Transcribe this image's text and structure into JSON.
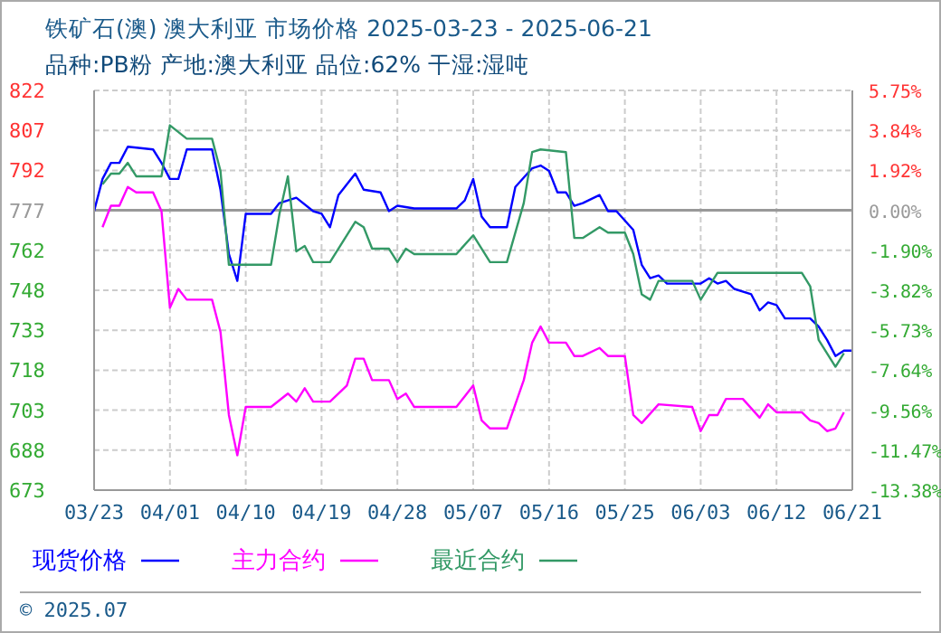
{
  "chart_data": {
    "type": "line",
    "title": "铁矿石(澳) 澳大利亚 市场价格 2025-03-23 - 2025-06-21",
    "subtitle": "品种:PB粉 产地:澳大利亚 品位:62% 干湿:湿吨",
    "annotations": [
      "© 2025.07"
    ],
    "series": [
      {
        "name": "现货价格",
        "color": "#0000ff",
        "x": [
          "2025-03-23",
          "2025-03-24",
          "2025-03-25",
          "2025-03-26",
          "2025-03-27",
          "2025-03-30",
          "2025-03-31",
          "2025-04-01",
          "2025-04-02",
          "2025-04-03",
          "2025-04-06",
          "2025-04-07",
          "2025-04-08",
          "2025-04-09",
          "2025-04-10",
          "2025-04-13",
          "2025-04-14",
          "2025-04-16",
          "2025-04-18",
          "2025-04-19",
          "2025-04-20",
          "2025-04-21",
          "2025-04-23",
          "2025-04-24",
          "2025-04-26",
          "2025-04-27",
          "2025-04-28",
          "2025-04-30",
          "2025-05-05",
          "2025-05-06",
          "2025-05-07",
          "2025-05-08",
          "2025-05-09",
          "2025-05-11",
          "2025-05-12",
          "2025-05-14",
          "2025-05-15",
          "2025-05-16",
          "2025-05-17",
          "2025-05-18",
          "2025-05-19",
          "2025-05-20",
          "2025-05-22",
          "2025-05-23",
          "2025-05-24",
          "2025-05-26",
          "2025-05-27",
          "2025-05-28",
          "2025-05-29",
          "2025-05-30",
          "2025-06-03",
          "2025-06-04",
          "2025-06-05",
          "2025-06-06",
          "2025-06-07",
          "2025-06-09",
          "2025-06-10",
          "2025-06-11",
          "2025-06-12",
          "2025-06-13",
          "2025-06-16",
          "2025-06-17",
          "2025-06-18",
          "2025-06-19",
          "2025-06-20",
          "2025-06-21"
        ],
        "values": [
          777,
          789,
          795,
          795,
          801,
          800,
          795,
          789,
          789,
          800,
          800,
          785,
          761,
          751,
          776,
          776,
          780,
          782,
          777,
          776,
          771,
          783,
          791,
          785,
          784,
          777,
          779,
          778,
          778,
          781,
          789,
          775,
          771,
          771,
          786,
          793,
          794,
          792,
          784,
          784,
          779,
          780,
          783,
          777,
          777,
          770,
          757,
          752,
          753,
          750,
          750,
          752,
          750,
          751,
          748,
          746,
          740,
          743,
          742,
          737,
          737,
          734,
          729,
          723,
          725,
          725
        ]
      },
      {
        "name": "主力合约",
        "color": "#ff00ff",
        "x": [
          "2025-03-24",
          "2025-03-25",
          "2025-03-26",
          "2025-03-27",
          "2025-03-28",
          "2025-03-30",
          "2025-03-31",
          "2025-04-01",
          "2025-04-02",
          "2025-04-03",
          "2025-04-06",
          "2025-04-07",
          "2025-04-08",
          "2025-04-09",
          "2025-04-10",
          "2025-04-13",
          "2025-04-15",
          "2025-04-16",
          "2025-04-17",
          "2025-04-18",
          "2025-04-20",
          "2025-04-22",
          "2025-04-23",
          "2025-04-24",
          "2025-04-25",
          "2025-04-27",
          "2025-04-28",
          "2025-04-29",
          "2025-04-30",
          "2025-05-05",
          "2025-05-06",
          "2025-05-07",
          "2025-05-08",
          "2025-05-09",
          "2025-05-11",
          "2025-05-13",
          "2025-05-14",
          "2025-05-15",
          "2025-05-16",
          "2025-05-18",
          "2025-05-19",
          "2025-05-20",
          "2025-05-22",
          "2025-05-23",
          "2025-05-25",
          "2025-05-26",
          "2025-05-27",
          "2025-05-29",
          "2025-06-02",
          "2025-06-03",
          "2025-06-04",
          "2025-06-05",
          "2025-06-06",
          "2025-06-08",
          "2025-06-10",
          "2025-06-11",
          "2025-06-12",
          "2025-06-15",
          "2025-06-16",
          "2025-06-17",
          "2025-06-18",
          "2025-06-19",
          "2025-06-20"
        ],
        "values": [
          771,
          779,
          779,
          786,
          784,
          784,
          777,
          741,
          748,
          744,
          744,
          732,
          701,
          686,
          704,
          704,
          709,
          706,
          711,
          706,
          706,
          712,
          722,
          722,
          714,
          714,
          707,
          709,
          704,
          704,
          708,
          712,
          699,
          696,
          696,
          714,
          728,
          734,
          728,
          728,
          723,
          723,
          726,
          723,
          723,
          701,
          698,
          705,
          704,
          695,
          701,
          701,
          707,
          707,
          700,
          705,
          702,
          702,
          699,
          698,
          695,
          696,
          702
        ]
      },
      {
        "name": "最近合约",
        "color": "#339966",
        "x": [
          "2025-03-24",
          "2025-03-25",
          "2025-03-26",
          "2025-03-27",
          "2025-03-28",
          "2025-03-31",
          "2025-04-01",
          "2025-04-03",
          "2025-04-06",
          "2025-04-07",
          "2025-04-08",
          "2025-04-13",
          "2025-04-14",
          "2025-04-15",
          "2025-04-16",
          "2025-04-17",
          "2025-04-18",
          "2025-04-20",
          "2025-04-23",
          "2025-04-24",
          "2025-04-25",
          "2025-04-27",
          "2025-04-28",
          "2025-04-29",
          "2025-04-30",
          "2025-05-05",
          "2025-05-07",
          "2025-05-09",
          "2025-05-11",
          "2025-05-13",
          "2025-05-14",
          "2025-05-15",
          "2025-05-18",
          "2025-05-19",
          "2025-05-20",
          "2025-05-22",
          "2025-05-23",
          "2025-05-25",
          "2025-05-26",
          "2025-05-27",
          "2025-05-28",
          "2025-05-29",
          "2025-06-02",
          "2025-06-03",
          "2025-06-05",
          "2025-06-15",
          "2025-06-16",
          "2025-06-17",
          "2025-06-19",
          "2025-06-20"
        ],
        "values": [
          787,
          791,
          791,
          795,
          790,
          790,
          809,
          804,
          804,
          792,
          757,
          757,
          776,
          790,
          762,
          764,
          758,
          758,
          773,
          771,
          763,
          763,
          758,
          763,
          761,
          761,
          768,
          758,
          758,
          780,
          799,
          800,
          799,
          767,
          767,
          771,
          769,
          769,
          761,
          746,
          744,
          751,
          751,
          744,
          754,
          754,
          749,
          729,
          719,
          724
        ]
      }
    ],
    "xlim": [
      "2025-03-23",
      "2025-06-21"
    ],
    "xticks": [
      {
        "value": "2025-03-23",
        "label": "03/23"
      },
      {
        "value": "2025-04-01",
        "label": "04/01"
      },
      {
        "value": "2025-04-10",
        "label": "04/10"
      },
      {
        "value": "2025-04-19",
        "label": "04/19"
      },
      {
        "value": "2025-04-28",
        "label": "04/28"
      },
      {
        "value": "2025-05-07",
        "label": "05/07"
      },
      {
        "value": "2025-05-16",
        "label": "05/16"
      },
      {
        "value": "2025-05-25",
        "label": "05/25"
      },
      {
        "value": "2025-06-03",
        "label": "06/03"
      },
      {
        "value": "2025-06-12",
        "label": "06/12"
      },
      {
        "value": "2025-06-21",
        "label": "06/21"
      }
    ],
    "ylim": [
      673,
      822
    ],
    "yticks": [
      822,
      {
        "value": 807.1,
        "label": "807"
      },
      {
        "value": 792.2,
        "label": "792"
      },
      {
        "value": 777.3,
        "label": "777"
      },
      {
        "value": 762.4,
        "label": "762"
      },
      {
        "value": 747.5,
        "label": "748"
      },
      {
        "value": 732.6,
        "label": "733"
      },
      {
        "value": 717.7,
        "label": "718"
      },
      {
        "value": 702.8,
        "label": "703"
      },
      {
        "value": 687.9,
        "label": "688"
      },
      673
    ],
    "y2lim": [
      -13.38,
      5.75
    ],
    "y2ticks": [
      {
        "value": 5.75,
        "label": "5.75%"
      },
      {
        "value": 3.84,
        "label": "3.84%"
      },
      {
        "value": 1.92,
        "label": "1.92%"
      },
      {
        "value": 0,
        "label": "0.00%"
      },
      {
        "value": -1.9,
        "label": "-1.90%"
      },
      {
        "value": -3.82,
        "label": "-3.82%"
      },
      {
        "value": -5.73,
        "label": "-5.73%"
      },
      {
        "value": -7.64,
        "label": "-7.64%"
      },
      {
        "value": -9.56,
        "label": "-9.56%"
      },
      {
        "value": -11.47,
        "label": "-11.47%"
      },
      {
        "value": -13.38,
        "label": "-13.38%"
      }
    ],
    "ref_lines": [
      {
        "axis": "y",
        "value": 777.3,
        "color": "#999999"
      }
    ],
    "grid": true,
    "legend": "bottom",
    "marker": "none",
    "line_style": "solid"
  }
}
